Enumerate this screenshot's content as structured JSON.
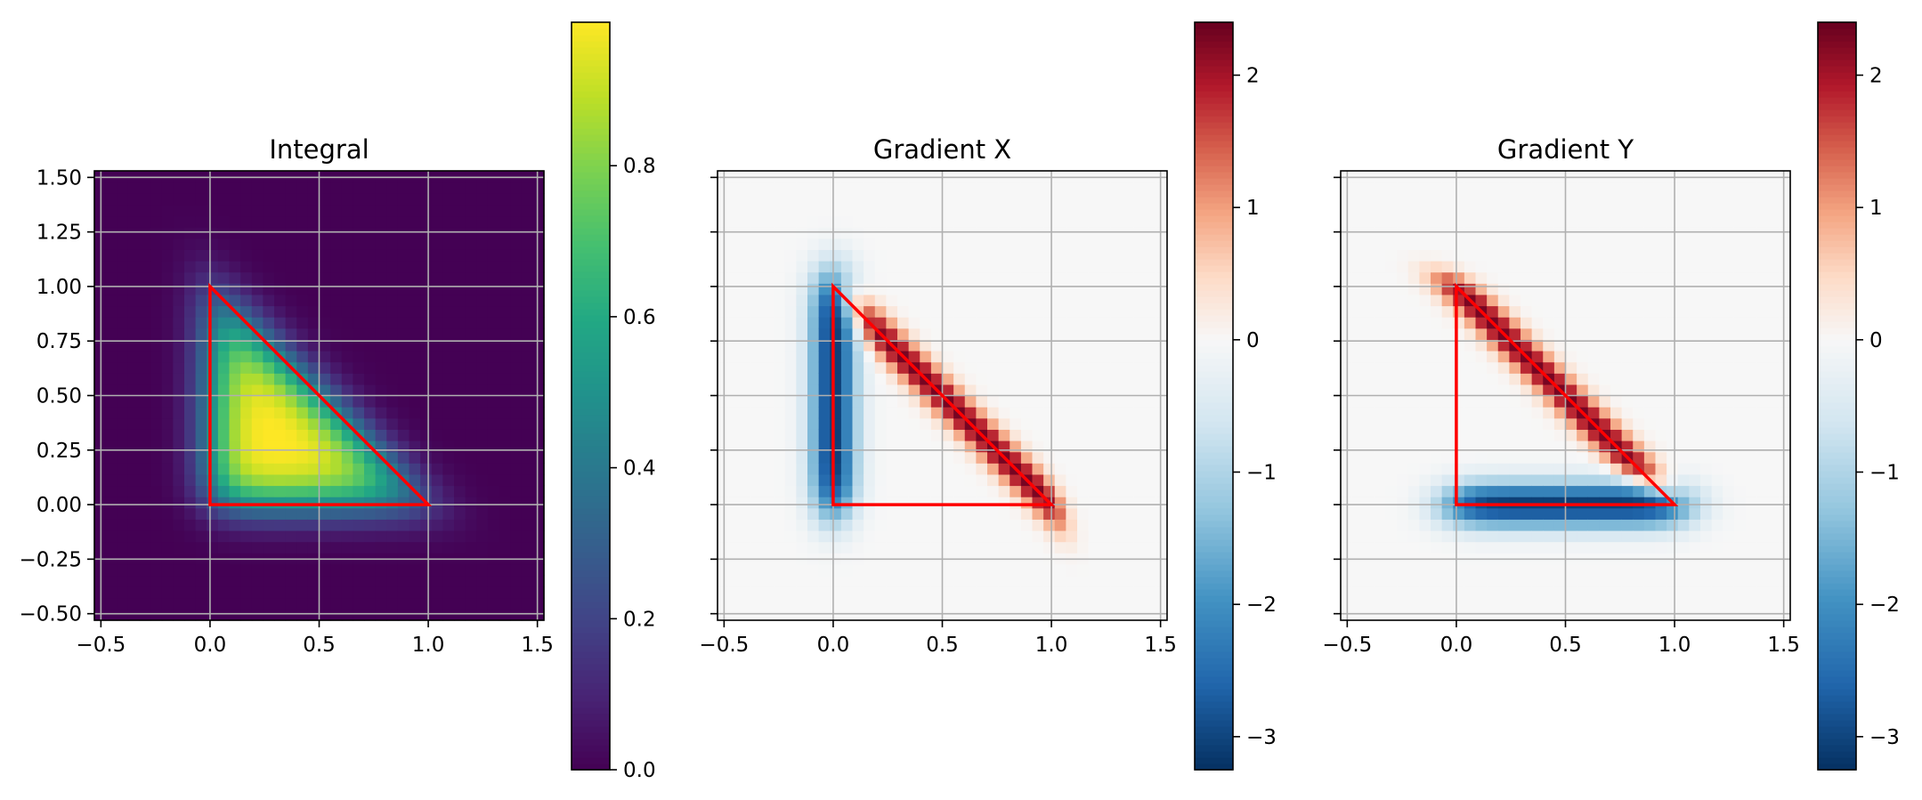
{
  "chart_data": [
    {
      "type": "heatmap",
      "title": "Integral",
      "xlabel": "",
      "ylabel": "",
      "field": "integral",
      "colormap": "viridis",
      "xlim": [
        -0.53,
        1.53
      ],
      "ylim": [
        -0.53,
        1.53
      ],
      "grid": true,
      "x_ticks": [
        -0.5,
        0.0,
        0.5,
        1.0,
        1.5
      ],
      "x_tick_labels": [
        "−0.5",
        "0.0",
        "0.5",
        "1.0",
        "1.5"
      ],
      "y_ticks": [
        -0.5,
        -0.25,
        0.0,
        0.25,
        0.5,
        0.75,
        1.0,
        1.25,
        1.5
      ],
      "y_tick_labels": [
        "−0.50",
        "−0.25",
        "0.00",
        "0.25",
        "0.50",
        "0.75",
        "1.00",
        "1.25",
        "1.50"
      ],
      "triangle": [
        [
          0,
          0
        ],
        [
          1,
          0
        ],
        [
          0,
          1
        ]
      ],
      "triangle_color": "#ff0000",
      "colorbar": {
        "range": [
          0.0,
          0.99
        ],
        "ticks": [
          0.0,
          0.2,
          0.4,
          0.6,
          0.8
        ],
        "tick_labels": [
          "0.0",
          "0.2",
          "0.4",
          "0.6",
          "0.8"
        ]
      }
    },
    {
      "type": "heatmap",
      "title": "Gradient X",
      "xlabel": "",
      "ylabel": "",
      "field": "gradient_x",
      "colormap": "RdBu_r",
      "xlim": [
        -0.53,
        1.53
      ],
      "ylim": [
        -0.53,
        1.53
      ],
      "grid": true,
      "x_ticks": [
        -0.5,
        0.0,
        0.5,
        1.0,
        1.5
      ],
      "x_tick_labels": [
        "−0.5",
        "0.0",
        "0.5",
        "1.0",
        "1.5"
      ],
      "y_ticks": [
        -0.5,
        -0.25,
        0.0,
        0.25,
        0.5,
        0.75,
        1.0,
        1.25,
        1.5
      ],
      "y_tick_labels": [],
      "triangle": [
        [
          0,
          0
        ],
        [
          1,
          0
        ],
        [
          0,
          1
        ]
      ],
      "triangle_color": "#ff0000",
      "colorbar": {
        "range": [
          -3.25,
          2.4
        ],
        "ticks": [
          -3,
          -2,
          -1,
          0,
          1,
          2
        ],
        "tick_labels": [
          "−3",
          "−2",
          "−1",
          "0",
          "1",
          "2"
        ]
      }
    },
    {
      "type": "heatmap",
      "title": "Gradient Y",
      "xlabel": "",
      "ylabel": "",
      "field": "gradient_y",
      "colormap": "RdBu_r",
      "xlim": [
        -0.53,
        1.53
      ],
      "ylim": [
        -0.53,
        1.53
      ],
      "grid": true,
      "x_ticks": [
        -0.5,
        0.0,
        0.5,
        1.0,
        1.5
      ],
      "x_tick_labels": [
        "−0.5",
        "0.0",
        "0.5",
        "1.0",
        "1.5"
      ],
      "y_ticks": [
        -0.5,
        -0.25,
        0.0,
        0.25,
        0.5,
        0.75,
        1.0,
        1.25,
        1.5
      ],
      "y_tick_labels": [],
      "triangle": [
        [
          0,
          0
        ],
        [
          1,
          0
        ],
        [
          0,
          1
        ]
      ],
      "triangle_color": "#ff0000",
      "colorbar": {
        "range": [
          -3.25,
          2.4
        ],
        "ticks": [
          -3,
          -2,
          -1,
          0,
          1,
          2
        ],
        "tick_labels": [
          "−3",
          "−2",
          "−1",
          "0",
          "1",
          "2"
        ]
      }
    }
  ]
}
